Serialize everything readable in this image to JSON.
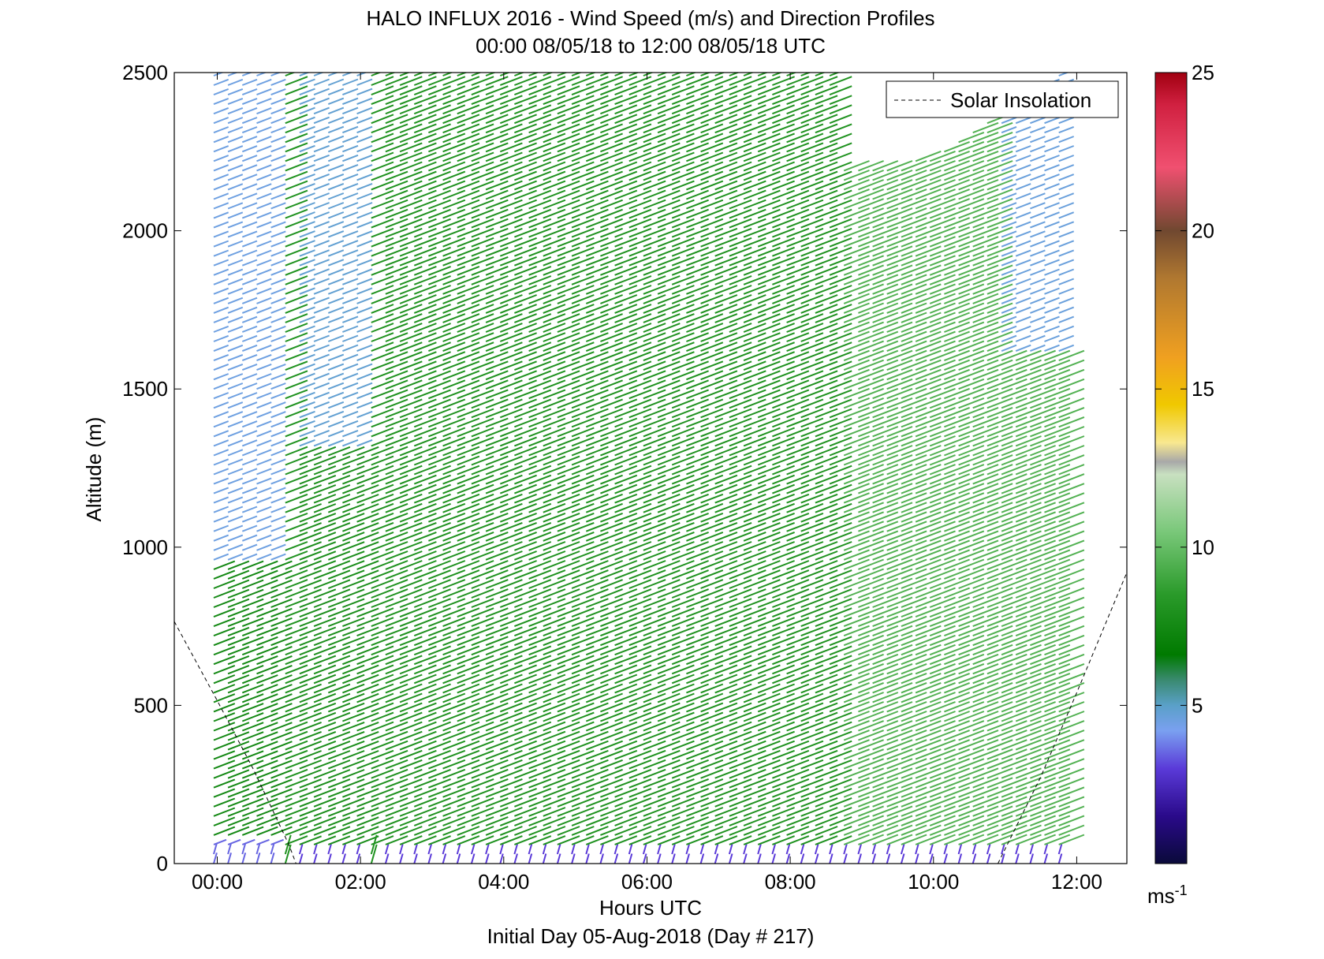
{
  "chart_data": {
    "type": "quiver",
    "title": "HALO INFLUX 2016 - Wind Speed (m/s) and Direction Profiles",
    "subtitle": "00:00 08/05/18 to 12:00 08/05/18  UTC",
    "xlabel": "Hours UTC",
    "ylabel": "Altitude (m)",
    "footer": "Initial Day 05-Aug-2018 (Day # 217)",
    "xlim": [
      -0.6,
      12.7
    ],
    "ylim": [
      0,
      2500
    ],
    "x_ticks": [
      {
        "value": 0,
        "label": "00:00"
      },
      {
        "value": 2,
        "label": "02:00"
      },
      {
        "value": 4,
        "label": "04:00"
      },
      {
        "value": 6,
        "label": "06:00"
      },
      {
        "value": 8,
        "label": "08:00"
      },
      {
        "value": 10,
        "label": "10:00"
      },
      {
        "value": 12,
        "label": "12:00"
      }
    ],
    "y_ticks": [
      0,
      500,
      1000,
      1500,
      2000,
      2500
    ],
    "legend": {
      "entries": [
        "Solar Insolation"
      ],
      "placement": "top-right"
    },
    "colorbar": {
      "range": [
        0,
        25
      ],
      "ticks": [
        5,
        10,
        15,
        20,
        25
      ],
      "unit_label": "ms",
      "unit_exponent": "-1",
      "stops": [
        {
          "v": 0,
          "color": "#0a0a3a"
        },
        {
          "v": 1.5,
          "color": "#2a0a8a"
        },
        {
          "v": 3,
          "color": "#5a3ad8"
        },
        {
          "v": 4.2,
          "color": "#7aa0f0"
        },
        {
          "v": 5,
          "color": "#5aa0c8"
        },
        {
          "v": 5.8,
          "color": "#3a8a70"
        },
        {
          "v": 6.6,
          "color": "#007a00"
        },
        {
          "v": 8.5,
          "color": "#2a9a2a"
        },
        {
          "v": 10.5,
          "color": "#7ac87a"
        },
        {
          "v": 12.3,
          "color": "#c8e0c0"
        },
        {
          "v": 12.7,
          "color": "#a8a8a8"
        },
        {
          "v": 13.3,
          "color": "#f8e890"
        },
        {
          "v": 14.5,
          "color": "#f0c800"
        },
        {
          "v": 16,
          "color": "#f0a020"
        },
        {
          "v": 18.5,
          "color": "#b07830"
        },
        {
          "v": 20,
          "color": "#704830"
        },
        {
          "v": 22,
          "color": "#f05070"
        },
        {
          "v": 24,
          "color": "#d02040"
        },
        {
          "v": 25,
          "color": "#a00010"
        }
      ]
    },
    "solar_insolation": [
      {
        "x": -0.6,
        "y": 765
      },
      {
        "x": 0,
        "y": 515
      },
      {
        "x": 0.5,
        "y": 300
      },
      {
        "x": 1.0,
        "y": 60
      },
      {
        "x": 1.1,
        "y": 0
      },
      {
        "x": 10.9,
        "y": 0
      },
      {
        "x": 11.5,
        "y": 275
      },
      {
        "x": 12.0,
        "y": 540
      },
      {
        "x": 12.7,
        "y": 920
      }
    ],
    "profiles": {
      "start_hour": -0.05,
      "step_hours": 0.2,
      "end_hour": 11.75,
      "altitude_step_m": 30,
      "top_altitude_m": [
        [
          8.55,
          2500
        ],
        [
          8.65,
          2200
        ],
        [
          9.5,
          2210
        ],
        [
          10.3,
          2280
        ],
        [
          10.7,
          2370
        ],
        [
          11.75,
          2500
        ]
      ],
      "wind_speed_regions_m_s": [
        {
          "hours": [
            -0.05,
            0.9
          ],
          "below_m": 60,
          "speed": 3.5
        },
        {
          "hours": [
            -0.05,
            0.9
          ],
          "below_m": 950,
          "speed": 7.5
        },
        {
          "hours": [
            -0.05,
            0.9
          ],
          "below_m": 2500,
          "speed": 4.5
        },
        {
          "hours": [
            1.0,
            2.1
          ],
          "below_m": 30,
          "speed": 3.0
        },
        {
          "hours": [
            1.0,
            2.1
          ],
          "below_m": 1300,
          "speed": 7.8
        },
        {
          "hours": [
            1.0,
            2.1
          ],
          "below_m": 2500,
          "speed": 4.8
        },
        {
          "hours": [
            2.2,
            8.6
          ],
          "below_m": 40,
          "speed": 3.0
        },
        {
          "hours": [
            2.2,
            8.6
          ],
          "below_m": 2500,
          "speed": 8.0
        },
        {
          "hours": [
            8.6,
            10.8
          ],
          "below_m": 40,
          "speed": 3.0
        },
        {
          "hours": [
            8.6,
            10.8
          ],
          "below_m": 2500,
          "speed": 9.5
        },
        {
          "hours": [
            10.8,
            11.75
          ],
          "below_m": 40,
          "speed": 3.0
        },
        {
          "hours": [
            10.8,
            11.75
          ],
          "below_m": 1600,
          "speed": 9.5
        },
        {
          "hours": [
            10.8,
            11.75
          ],
          "below_m": 2500,
          "speed": 4.6
        }
      ],
      "wind_direction_deg_from": 235
    }
  }
}
